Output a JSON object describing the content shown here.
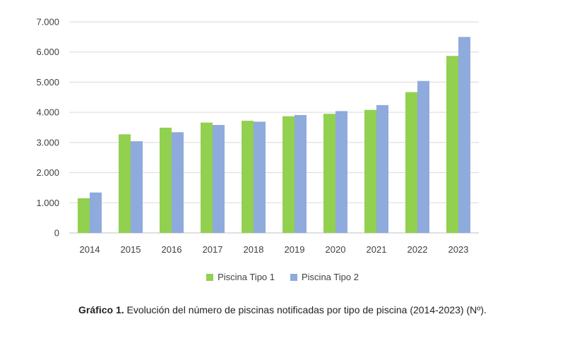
{
  "chart_data": {
    "type": "bar",
    "categories": [
      "2014",
      "2015",
      "2016",
      "2017",
      "2018",
      "2019",
      "2020",
      "2021",
      "2022",
      "2023"
    ],
    "series": [
      {
        "name": "Piscina Tipo 1",
        "color": "#92d050",
        "values": [
          1150,
          3270,
          3490,
          3660,
          3720,
          3870,
          3950,
          4080,
          4670,
          5870
        ]
      },
      {
        "name": "Piscina Tipo 2",
        "color": "#8faadc",
        "values": [
          1340,
          3040,
          3340,
          3580,
          3690,
          3910,
          4040,
          4240,
          5040,
          6500
        ]
      }
    ],
    "yticks": [
      "0",
      "1.000",
      "2.000",
      "3.000",
      "4.000",
      "5.000",
      "6.000",
      "7.000"
    ],
    "ylim": [
      0,
      7000
    ],
    "grid": true,
    "legend_position": "bottom"
  },
  "caption": {
    "label": "Gráfico 1.",
    "text": " Evolución del número de piscinas notificadas por tipo de piscina (2014-2023) (Nº)."
  }
}
